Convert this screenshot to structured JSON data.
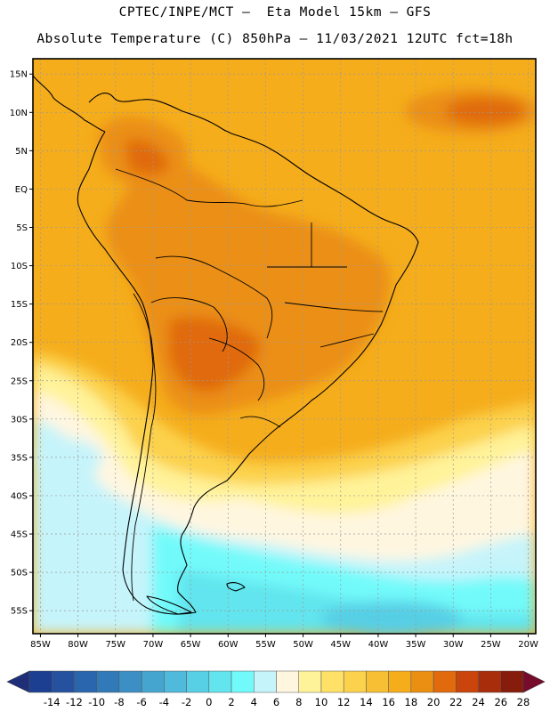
{
  "header": {
    "line1": "CPTEC/INPE/MCT —  Eta Model 15km — GFS",
    "line2": "Absolute Temperature (C) 850hPa — 11/03/2021 12UTC fct=18h"
  },
  "map": {
    "lon_range": [
      -86,
      -19
    ],
    "lat_range": [
      -58,
      17
    ],
    "lat_ticks": [
      {
        "value": 15,
        "label": "15N"
      },
      {
        "value": 10,
        "label": "10N"
      },
      {
        "value": 5,
        "label": "5N"
      },
      {
        "value": 0,
        "label": "EQ"
      },
      {
        "value": -5,
        "label": "5S"
      },
      {
        "value": -10,
        "label": "10S"
      },
      {
        "value": -15,
        "label": "15S"
      },
      {
        "value": -20,
        "label": "20S"
      },
      {
        "value": -25,
        "label": "25S"
      },
      {
        "value": -30,
        "label": "30S"
      },
      {
        "value": -35,
        "label": "35S"
      },
      {
        "value": -40,
        "label": "40S"
      },
      {
        "value": -45,
        "label": "45S"
      },
      {
        "value": -50,
        "label": "50S"
      },
      {
        "value": -55,
        "label": "55S"
      }
    ],
    "lon_ticks": [
      {
        "value": -85,
        "label": "85W"
      },
      {
        "value": -80,
        "label": "80W"
      },
      {
        "value": -75,
        "label": "75W"
      },
      {
        "value": -70,
        "label": "70W"
      },
      {
        "value": -65,
        "label": "65W"
      },
      {
        "value": -60,
        "label": "60W"
      },
      {
        "value": -55,
        "label": "55W"
      },
      {
        "value": -50,
        "label": "50W"
      },
      {
        "value": -45,
        "label": "45W"
      },
      {
        "value": -40,
        "label": "40W"
      },
      {
        "value": -35,
        "label": "35W"
      },
      {
        "value": -30,
        "label": "30W"
      },
      {
        "value": -25,
        "label": "25W"
      },
      {
        "value": -20,
        "label": "20W"
      }
    ],
    "background_color": "#f5ad1c"
  },
  "colorbar": {
    "colors": [
      "#1d3f92",
      "#25519f",
      "#2a66ad",
      "#3279b8",
      "#3c8fc4",
      "#45a5cf",
      "#4fbadb",
      "#57cfe5",
      "#62e5ee",
      "#72fafa",
      "#c6f4fb",
      "#fff6e0",
      "#fff39a",
      "#ffe168",
      "#fcd14c",
      "#f7bf33",
      "#f5ad1c",
      "#eb8f12",
      "#e06a0c",
      "#c9450b",
      "#a82d0b",
      "#861c0c"
    ],
    "low_color": "#1e2e78",
    "high_color": "#760b2c",
    "labels": [
      "-14",
      "-12",
      "-10",
      "-8",
      "-6",
      "-4",
      "-2",
      "0",
      "2",
      "4",
      "6",
      "8",
      "10",
      "12",
      "14",
      "16",
      "18",
      "20",
      "22",
      "24",
      "26",
      "28"
    ]
  }
}
